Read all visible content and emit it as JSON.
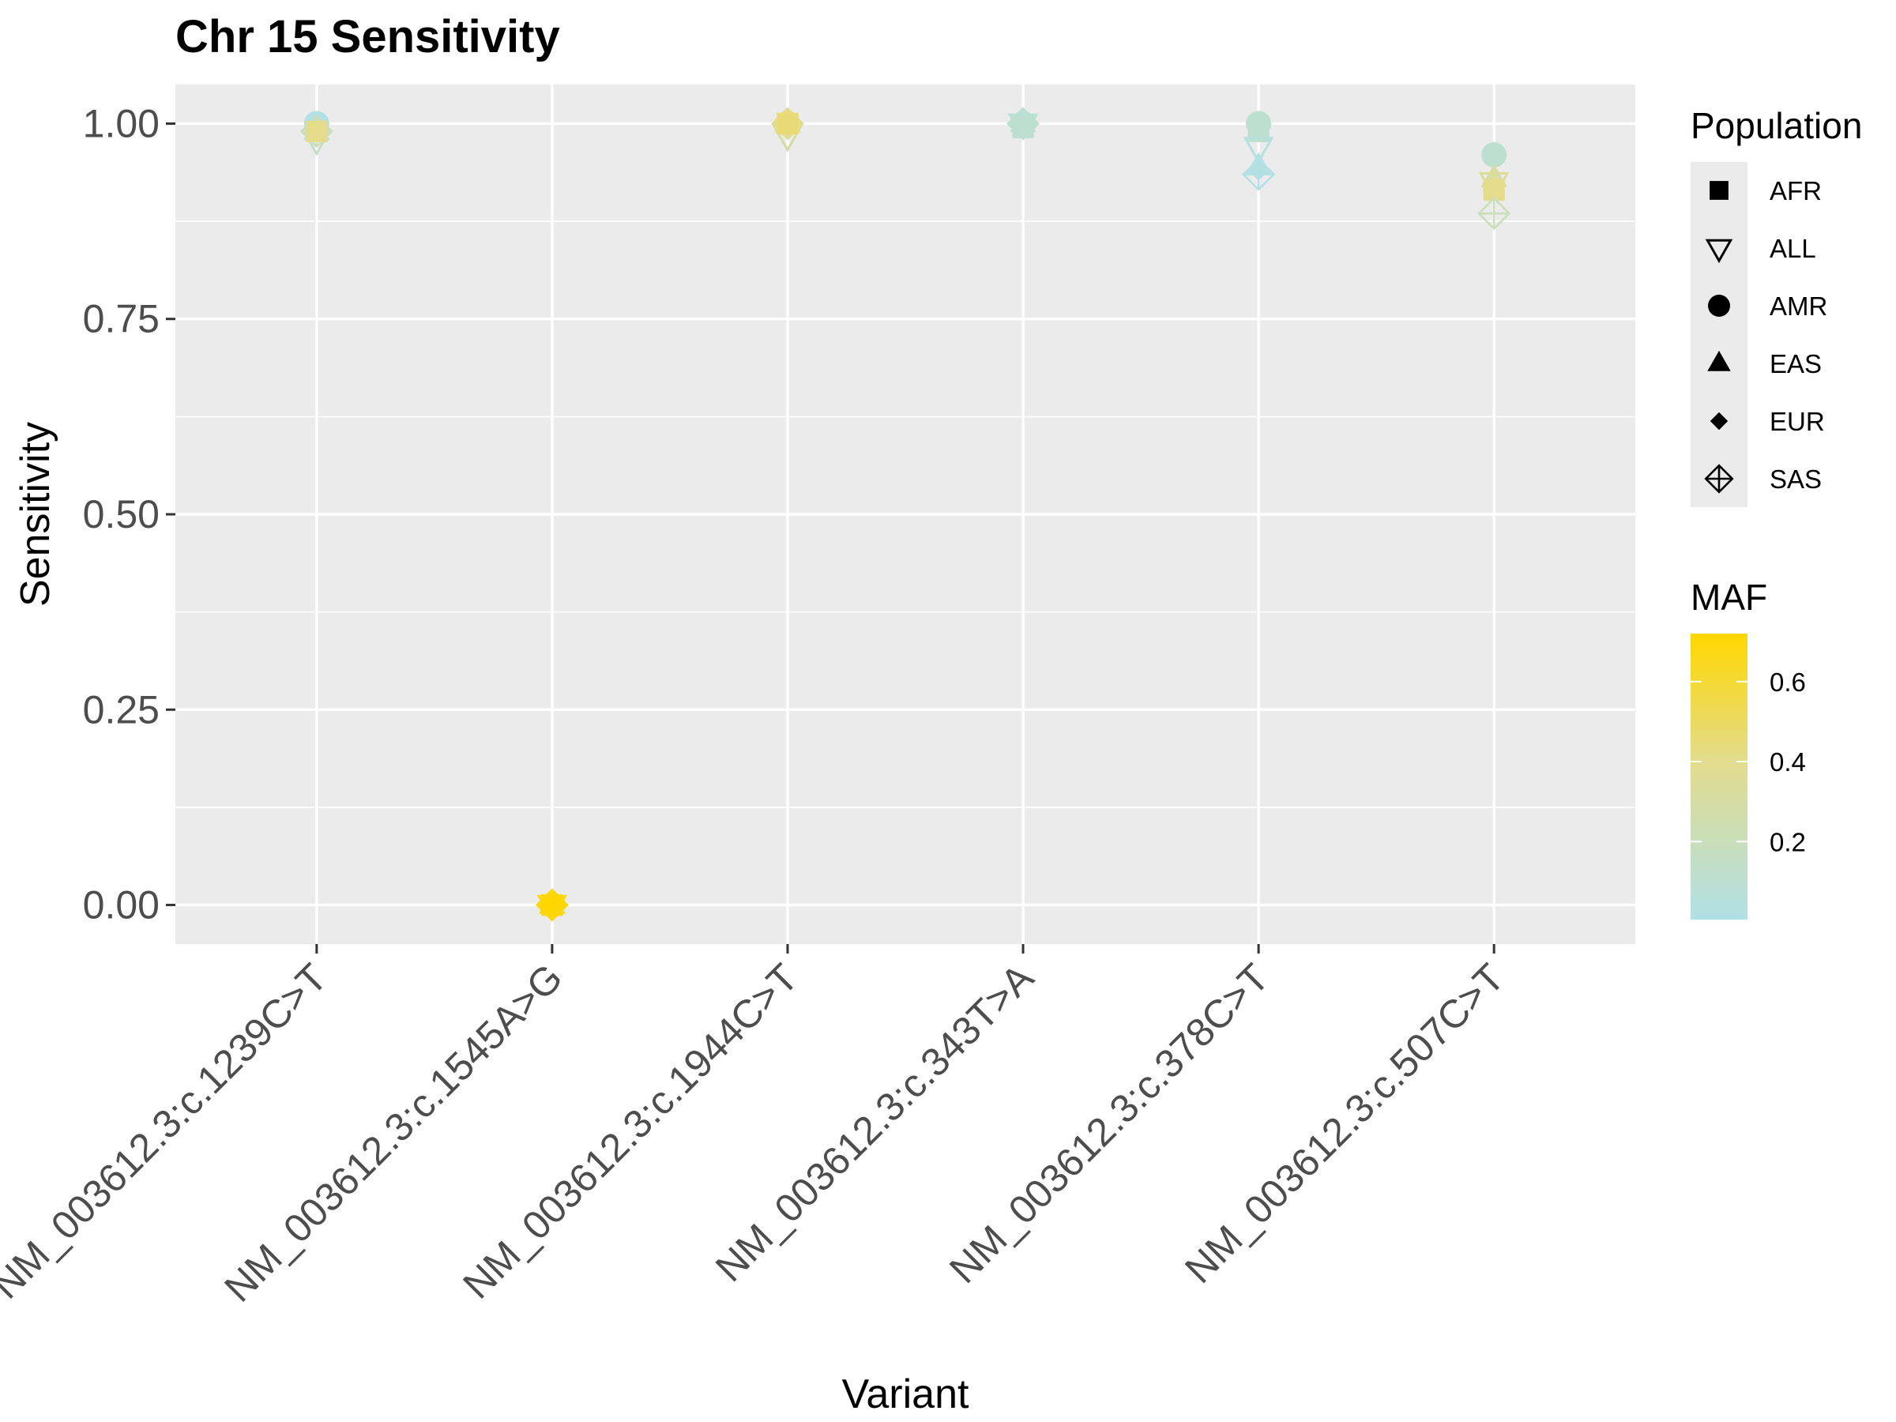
{
  "chart_data": {
    "type": "scatter",
    "title": "Chr 15 Sensitivity",
    "xlabel": "Variant",
    "ylabel": "Sensitivity",
    "ylim": [
      -0.05,
      1.05
    ],
    "yticks": [
      0.0,
      0.25,
      0.5,
      0.75,
      1.0
    ],
    "ytick_labels": [
      "0.00",
      "0.25",
      "0.50",
      "0.75",
      "1.00"
    ],
    "categories": [
      "NM_003612.3:c.1239C>T",
      "NM_003612.3:c.1545A>G",
      "NM_003612.3:c.1944C>T",
      "NM_003612.3:c.343T>A",
      "NM_003612.3:c.378C>T",
      "NM_003612.3:c.507C>T"
    ],
    "grid": true,
    "points": [
      {
        "variant": "NM_003612.3:c.1239C>T",
        "population": "AMR",
        "sensitivity": 1.0,
        "maf": 0.02
      },
      {
        "variant": "NM_003612.3:c.1239C>T",
        "population": "EAS",
        "sensitivity": 0.99,
        "maf": 0.05
      },
      {
        "variant": "NM_003612.3:c.1239C>T",
        "population": "ALL",
        "sensitivity": 0.98,
        "maf": 0.15
      },
      {
        "variant": "NM_003612.3:c.1239C>T",
        "population": "SAS",
        "sensitivity": 0.99,
        "maf": 0.2
      },
      {
        "variant": "NM_003612.3:c.1239C>T",
        "population": "EUR",
        "sensitivity": 0.99,
        "maf": 0.3
      },
      {
        "variant": "NM_003612.3:c.1239C>T",
        "population": "AFR",
        "sensitivity": 0.99,
        "maf": 0.4
      },
      {
        "variant": "NM_003612.3:c.1545A>G",
        "population": "ALL",
        "sensitivity": 0.0,
        "maf": 0.65
      },
      {
        "variant": "NM_003612.3:c.1545A>G",
        "population": "SAS",
        "sensitivity": 0.0,
        "maf": 0.68
      },
      {
        "variant": "NM_003612.3:c.1545A>G",
        "population": "AMR",
        "sensitivity": 0.0,
        "maf": 0.7
      },
      {
        "variant": "NM_003612.3:c.1545A>G",
        "population": "EAS",
        "sensitivity": 0.0,
        "maf": 0.7
      },
      {
        "variant": "NM_003612.3:c.1545A>G",
        "population": "EUR",
        "sensitivity": 0.0,
        "maf": 0.7
      },
      {
        "variant": "NM_003612.3:c.1545A>G",
        "population": "AFR",
        "sensitivity": 0.0,
        "maf": 0.72
      },
      {
        "variant": "NM_003612.3:c.1944C>T",
        "population": "ALL",
        "sensitivity": 0.985,
        "maf": 0.3
      },
      {
        "variant": "NM_003612.3:c.1944C>T",
        "population": "SAS",
        "sensitivity": 1.0,
        "maf": 0.35
      },
      {
        "variant": "NM_003612.3:c.1944C>T",
        "population": "AMR",
        "sensitivity": 1.0,
        "maf": 0.4
      },
      {
        "variant": "NM_003612.3:c.1944C>T",
        "population": "EAS",
        "sensitivity": 1.0,
        "maf": 0.45
      },
      {
        "variant": "NM_003612.3:c.1944C>T",
        "population": "EUR",
        "sensitivity": 1.0,
        "maf": 0.45
      },
      {
        "variant": "NM_003612.3:c.1944C>T",
        "population": "AFR",
        "sensitivity": 1.0,
        "maf": 0.45
      },
      {
        "variant": "NM_003612.3:c.343T>A",
        "population": "ALL",
        "sensitivity": 1.0,
        "maf": 0.08
      },
      {
        "variant": "NM_003612.3:c.343T>A",
        "population": "SAS",
        "sensitivity": 1.0,
        "maf": 0.1
      },
      {
        "variant": "NM_003612.3:c.343T>A",
        "population": "AMR",
        "sensitivity": 1.0,
        "maf": 0.1
      },
      {
        "variant": "NM_003612.3:c.343T>A",
        "population": "EAS",
        "sensitivity": 1.0,
        "maf": 0.08
      },
      {
        "variant": "NM_003612.3:c.343T>A",
        "population": "EUR",
        "sensitivity": 0.995,
        "maf": 0.1
      },
      {
        "variant": "NM_003612.3:c.343T>A",
        "population": "AFR",
        "sensitivity": 0.995,
        "maf": 0.1
      },
      {
        "variant": "NM_003612.3:c.378C>T",
        "population": "AMR",
        "sensitivity": 1.0,
        "maf": 0.1
      },
      {
        "variant": "NM_003612.3:c.378C>T",
        "population": "AFR",
        "sensitivity": 0.99,
        "maf": 0.1
      },
      {
        "variant": "NM_003612.3:c.378C>T",
        "population": "ALL",
        "sensitivity": 0.97,
        "maf": 0.05
      },
      {
        "variant": "NM_003612.3:c.378C>T",
        "population": "EAS",
        "sensitivity": 0.945,
        "maf": 0.01
      },
      {
        "variant": "NM_003612.3:c.378C>T",
        "population": "EUR",
        "sensitivity": 0.94,
        "maf": 0.03
      },
      {
        "variant": "NM_003612.3:c.378C>T",
        "population": "SAS",
        "sensitivity": 0.935,
        "maf": 0.02
      },
      {
        "variant": "NM_003612.3:c.507C>T",
        "population": "AMR",
        "sensitivity": 0.96,
        "maf": 0.1
      },
      {
        "variant": "NM_003612.3:c.507C>T",
        "population": "EAS",
        "sensitivity": 0.93,
        "maf": 0.3
      },
      {
        "variant": "NM_003612.3:c.507C>T",
        "population": "ALL",
        "sensitivity": 0.925,
        "maf": 0.35
      },
      {
        "variant": "NM_003612.3:c.507C>T",
        "population": "EUR",
        "sensitivity": 0.92,
        "maf": 0.35
      },
      {
        "variant": "NM_003612.3:c.507C>T",
        "population": "AFR",
        "sensitivity": 0.915,
        "maf": 0.4
      },
      {
        "variant": "NM_003612.3:c.507C>T",
        "population": "SAS",
        "sensitivity": 0.885,
        "maf": 0.2
      }
    ],
    "legend_shape": {
      "title": "Population",
      "entries": [
        "AFR",
        "ALL",
        "AMR",
        "EAS",
        "EUR",
        "SAS"
      ],
      "shapes": {
        "AFR": "square",
        "ALL": "triangle-down-open",
        "AMR": "circle",
        "EAS": "triangle-up",
        "EUR": "diamond",
        "SAS": "diamond-plus-open"
      }
    },
    "legend_color": {
      "title": "MAF",
      "ticks": [
        0.2,
        0.4,
        0.6
      ],
      "tick_labels": [
        "0.2",
        "0.4",
        "0.6"
      ],
      "range": [
        0.005,
        0.72
      ],
      "color_low": "#B0E0E6",
      "color_mid": "#E4DC8C",
      "color_high": "#FFD700"
    },
    "colors": {
      "panel_background": "#EBEBEB",
      "grid": "#FFFFFF"
    }
  }
}
